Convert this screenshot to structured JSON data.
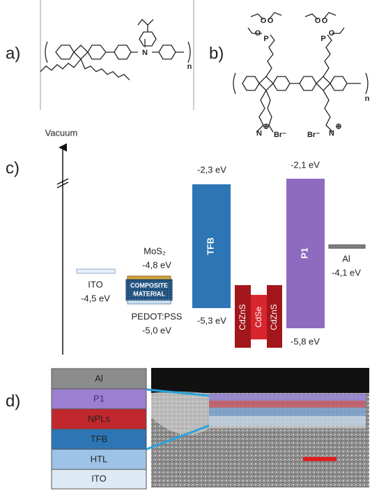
{
  "panels": {
    "a": "a)",
    "b": "b)",
    "c": "c)",
    "d": "d)"
  },
  "structure_a": {
    "atoms": [
      "N",
      "n"
    ]
  },
  "structure_b": {
    "atoms": [
      "P",
      "P",
      "O",
      "O",
      "O",
      "O",
      "O",
      "O",
      "N",
      "N",
      "⊕",
      "⊕",
      "Br⁻",
      "Br⁻",
      "n"
    ]
  },
  "energy_diagram": {
    "axis_label": "Vacuum",
    "ito": {
      "label": "ITO",
      "level": "-4,5 eV"
    },
    "mos2": {
      "label": "MoS₂",
      "level": "-4,8 eV"
    },
    "composite": {
      "line1": "COMPOSITE",
      "line2": "MATERIAL"
    },
    "pedot": {
      "label": "PEDOT:PSS",
      "level": "-5,0 eV"
    },
    "tfb": {
      "label": "TFB",
      "lumo": "-2,3 eV",
      "homo": "-5,3 eV"
    },
    "npl": {
      "shell1": "CdZnS",
      "core": "CdSe",
      "shell2": "CdZnS"
    },
    "p1": {
      "label": "P1",
      "lumo": "-2,1 eV",
      "homo": "-5,8 eV"
    },
    "al": {
      "label": "Al",
      "level": "-4,1 eV"
    }
  },
  "stack": {
    "layers": [
      "Al",
      "P1",
      "NPLs",
      "TFB",
      "HTL",
      "ITO"
    ]
  }
}
